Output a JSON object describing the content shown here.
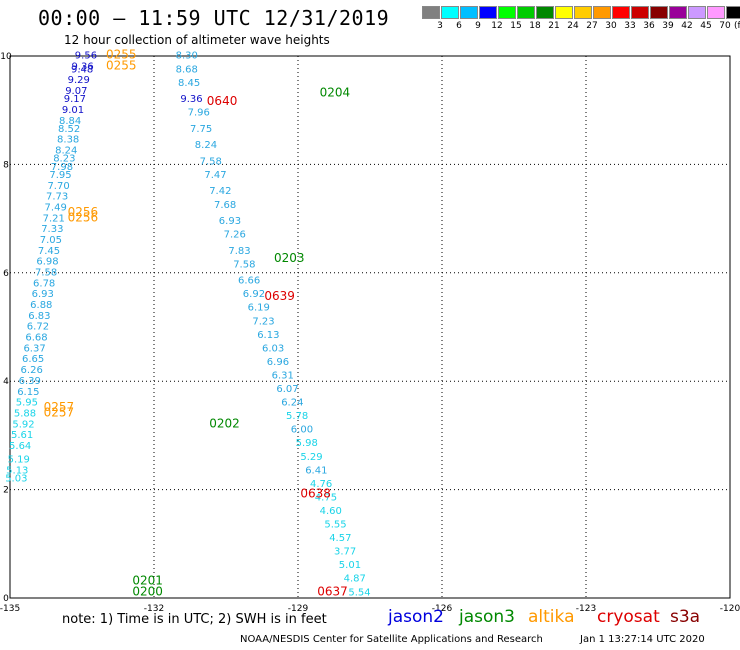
{
  "header": {
    "title": "00:00 – 11:59 UTC 12/31/2019",
    "subtitle": "12 hour collection of altimeter wave heights"
  },
  "colorbar": {
    "labels": [
      "3",
      "6",
      "9",
      "12",
      "15",
      "18",
      "21",
      "24",
      "27",
      "30",
      "33",
      "36",
      "39",
      "42",
      "45",
      "70"
    ],
    "unit": "(ft)",
    "colors": [
      "#808080",
      "#00ffff",
      "#00bfff",
      "#0000ff",
      "#00ff00",
      "#00cc00",
      "#008800",
      "#ffff00",
      "#ffcc00",
      "#ff9900",
      "#ff0000",
      "#cc0000",
      "#880000",
      "#990099",
      "#cc99ff",
      "#ff99ff",
      "#000000"
    ]
  },
  "chart_data": {
    "type": "scatter",
    "x_ticks": [
      "-135",
      "-132",
      "-129",
      "-126",
      "-123",
      "-120"
    ],
    "y_ticks": [
      "0",
      "2",
      "4",
      "6",
      "8",
      "10"
    ],
    "grid": true,
    "tracks": [
      {
        "satellite": "altika",
        "points": [
          {
            "lon": -133.65,
            "lat": 9.95,
            "v": "9.56"
          },
          {
            "lon": -133.72,
            "lat": 9.75,
            "v": "9.36"
          },
          {
            "lon": -133.73,
            "lat": 9.7,
            "v": "9.48"
          },
          {
            "lon": -133.8,
            "lat": 9.5,
            "v": "9.29"
          },
          {
            "lon": -133.85,
            "lat": 9.3,
            "v": "9.07"
          },
          {
            "lon": -133.88,
            "lat": 9.15,
            "v": "9.17"
          },
          {
            "lon": -133.92,
            "lat": 8.95,
            "v": "9.01"
          },
          {
            "lon": -133.98,
            "lat": 8.75,
            "v": "8.84"
          },
          {
            "lon": -134.0,
            "lat": 8.6,
            "v": "8.52"
          },
          {
            "lon": -134.02,
            "lat": 8.4,
            "v": "8.38"
          },
          {
            "lon": -134.06,
            "lat": 8.2,
            "v": "8.24"
          },
          {
            "lon": -134.1,
            "lat": 8.05,
            "v": "8.23"
          },
          {
            "lon": -134.15,
            "lat": 7.9,
            "v": "7.98"
          },
          {
            "lon": -134.18,
            "lat": 7.75,
            "v": "7.95"
          },
          {
            "lon": -134.22,
            "lat": 7.55,
            "v": "7.70"
          },
          {
            "lon": -134.25,
            "lat": 7.35,
            "v": "7.73"
          },
          {
            "lon": -134.28,
            "lat": 7.15,
            "v": "7.49"
          },
          {
            "lon": -134.32,
            "lat": 6.95,
            "v": "7.21"
          },
          {
            "lon": -134.35,
            "lat": 6.75,
            "v": "7.33"
          },
          {
            "lon": -134.38,
            "lat": 6.55,
            "v": "7.05"
          },
          {
            "lon": -134.42,
            "lat": 6.35,
            "v": "7.45"
          },
          {
            "lon": -134.45,
            "lat": 6.15,
            "v": "6.98"
          },
          {
            "lon": -134.48,
            "lat": 5.95,
            "v": "7.58"
          },
          {
            "lon": -134.52,
            "lat": 5.75,
            "v": "6.78"
          },
          {
            "lon": -134.55,
            "lat": 5.55,
            "v": "6.93"
          },
          {
            "lon": -134.58,
            "lat": 5.35,
            "v": "6.88"
          },
          {
            "lon": -134.62,
            "lat": 5.15,
            "v": "6.83"
          },
          {
            "lon": -134.65,
            "lat": 4.95,
            "v": "6.72"
          },
          {
            "lon": -134.68,
            "lat": 4.75,
            "v": "6.68"
          },
          {
            "lon": -134.72,
            "lat": 4.55,
            "v": "6.37"
          },
          {
            "lon": -134.75,
            "lat": 4.35,
            "v": "6.65"
          },
          {
            "lon": -134.78,
            "lat": 4.15,
            "v": "6.26"
          },
          {
            "lon": -134.82,
            "lat": 3.95,
            "v": "6.39"
          },
          {
            "lon": -134.85,
            "lat": 3.75,
            "v": "6.15"
          },
          {
            "lon": -134.88,
            "lat": 3.55,
            "v": "5.95"
          },
          {
            "lon": -134.92,
            "lat": 3.35,
            "v": "5.88"
          },
          {
            "lon": -134.95,
            "lat": 3.15,
            "v": "5.92"
          },
          {
            "lon": -134.98,
            "lat": 2.95,
            "v": "5.61"
          },
          {
            "lon": -135.02,
            "lat": 2.75,
            "v": "5.64"
          },
          {
            "lon": -135.05,
            "lat": 2.5,
            "v": "5.19"
          },
          {
            "lon": -135.08,
            "lat": 2.3,
            "v": "5.13"
          },
          {
            "lon": -135.1,
            "lat": 2.15,
            "v": "5.03"
          }
        ]
      },
      {
        "satellite": "jason3",
        "points": [
          {
            "lon": -131.55,
            "lat": 9.95,
            "v": "8.30"
          },
          {
            "lon": -131.55,
            "lat": 9.7,
            "v": "8.68"
          },
          {
            "lon": -131.5,
            "lat": 9.45,
            "v": "8.45"
          },
          {
            "lon": -131.45,
            "lat": 9.15,
            "v": "9.36"
          },
          {
            "lon": -131.3,
            "lat": 8.9,
            "v": "7.96"
          },
          {
            "lon": -131.25,
            "lat": 8.6,
            "v": "7.75"
          },
          {
            "lon": -131.15,
            "lat": 8.3,
            "v": "8.24"
          },
          {
            "lon": -131.05,
            "lat": 8.0,
            "v": "7.58"
          },
          {
            "lon": -130.95,
            "lat": 7.75,
            "v": "7.47"
          },
          {
            "lon": -130.85,
            "lat": 7.45,
            "v": "7.42"
          },
          {
            "lon": -130.75,
            "lat": 7.2,
            "v": "7.68"
          },
          {
            "lon": -130.65,
            "lat": 6.9,
            "v": "6.93"
          },
          {
            "lon": -130.55,
            "lat": 6.65,
            "v": "7.26"
          },
          {
            "lon": -130.45,
            "lat": 6.35,
            "v": "7.83"
          },
          {
            "lon": -130.35,
            "lat": 6.1,
            "v": "7.58"
          },
          {
            "lon": -130.25,
            "lat": 5.8,
            "v": "6.66"
          },
          {
            "lon": -130.15,
            "lat": 5.55,
            "v": "6.92"
          },
          {
            "lon": -130.05,
            "lat": 5.3,
            "v": "6.19"
          },
          {
            "lon": -129.95,
            "lat": 5.05,
            "v": "7.23"
          },
          {
            "lon": -129.85,
            "lat": 4.8,
            "v": "6.13"
          },
          {
            "lon": -129.75,
            "lat": 4.55,
            "v": "6.03"
          },
          {
            "lon": -129.65,
            "lat": 4.3,
            "v": "6.96"
          },
          {
            "lon": -129.55,
            "lat": 4.05,
            "v": "6.31"
          },
          {
            "lon": -129.45,
            "lat": 3.8,
            "v": "6.07"
          },
          {
            "lon": -129.35,
            "lat": 3.55,
            "v": "6.24"
          },
          {
            "lon": -129.25,
            "lat": 3.3,
            "v": "5.78"
          },
          {
            "lon": -129.15,
            "lat": 3.05,
            "v": "6.00"
          },
          {
            "lon": -129.05,
            "lat": 2.8,
            "v": "5.98"
          },
          {
            "lon": -128.95,
            "lat": 2.55,
            "v": "5.29"
          },
          {
            "lon": -128.85,
            "lat": 2.3,
            "v": "6.41"
          },
          {
            "lon": -128.75,
            "lat": 2.05,
            "v": "4.76"
          },
          {
            "lon": -128.65,
            "lat": 1.8,
            "v": "4.75"
          },
          {
            "lon": -128.55,
            "lat": 1.55,
            "v": "4.60"
          },
          {
            "lon": -128.45,
            "lat": 1.3,
            "v": "5.55"
          },
          {
            "lon": -128.35,
            "lat": 1.05,
            "v": "4.57"
          },
          {
            "lon": -128.25,
            "lat": 0.8,
            "v": "3.77"
          },
          {
            "lon": -128.15,
            "lat": 0.55,
            "v": "5.01"
          },
          {
            "lon": -128.05,
            "lat": 0.3,
            "v": "4.87"
          },
          {
            "lon": -127.95,
            "lat": 0.05,
            "v": "5.54"
          }
        ]
      }
    ],
    "time_labels": [
      {
        "text": "0255",
        "satellite": "altika",
        "lon": -133.0,
        "lat": 9.95
      },
      {
        "text": "0255",
        "satellite": "altika",
        "lon": -133.0,
        "lat": 9.75
      },
      {
        "text": "0256",
        "satellite": "altika",
        "lon": -133.8,
        "lat": 7.05
      },
      {
        "text": "0256",
        "satellite": "altika",
        "lon": -133.8,
        "lat": 6.95
      },
      {
        "text": "0257",
        "satellite": "altika",
        "lon": -134.3,
        "lat": 3.45
      },
      {
        "text": "0257",
        "satellite": "altika",
        "lon": -134.3,
        "lat": 3.35
      },
      {
        "text": "0640",
        "satellite": "cryosat",
        "lon": -130.9,
        "lat": 9.1
      },
      {
        "text": "0204",
        "satellite": "jason3",
        "lon": -128.55,
        "lat": 9.25
      },
      {
        "text": "0203",
        "satellite": "jason3",
        "lon": -129.5,
        "lat": 6.2
      },
      {
        "text": "0639",
        "satellite": "cryosat",
        "lon": -129.7,
        "lat": 5.5
      },
      {
        "text": "0202",
        "satellite": "jason3",
        "lon": -130.85,
        "lat": 3.15
      },
      {
        "text": "0638",
        "satellite": "cryosat",
        "lon": -128.95,
        "lat": 1.85
      },
      {
        "text": "0201",
        "satellite": "jason3",
        "lon": -132.45,
        "lat": 0.25
      },
      {
        "text": "0200",
        "satellite": "jason3",
        "lon": -132.45,
        "lat": 0.05
      },
      {
        "text": "0637",
        "satellite": "cryosat",
        "lon": -128.6,
        "lat": 0.05
      }
    ]
  },
  "footer": {
    "note": "note:  1) Time is in UTC;  2) SWH is in feet",
    "legend": [
      {
        "label": "jason2",
        "color": "#0000dd"
      },
      {
        "label": "jason3",
        "color": "#008800"
      },
      {
        "label": "altika",
        "color": "#ff9900"
      },
      {
        "label": "cryosat",
        "color": "#dd0000"
      },
      {
        "label": "s3a",
        "color": "#880000"
      }
    ],
    "credit": "NOAA/NESDIS Center for Satellite Applications and Research",
    "generated": "Jan  1 13:27:14 UTC 2020"
  }
}
